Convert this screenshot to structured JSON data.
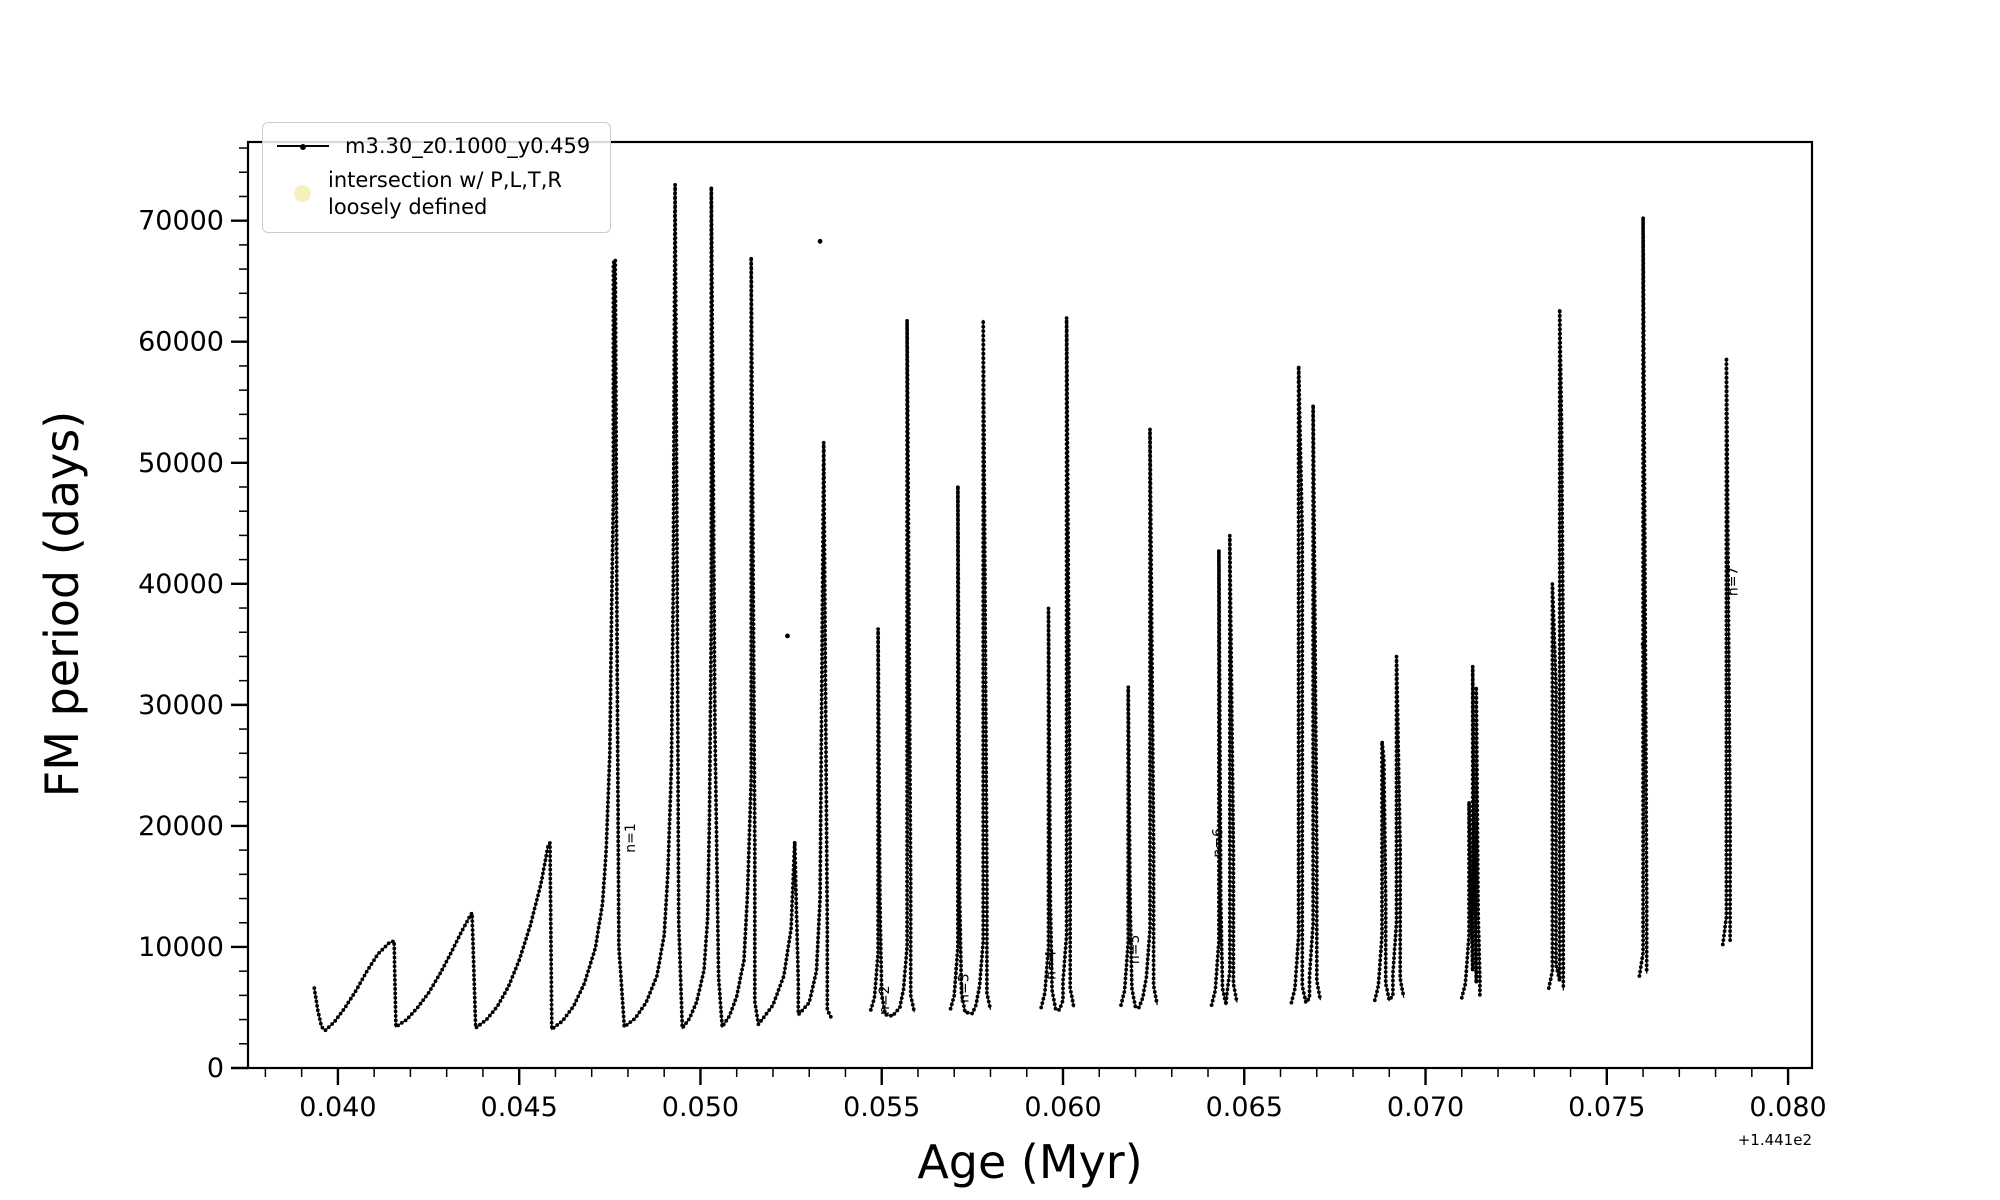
{
  "chart_data": {
    "type": "line",
    "title": "",
    "xlabel": "Age (Myr)",
    "ylabel": "FM period (days)",
    "x_offset_text": "+1.441e2",
    "xlim": [
      0.03752,
      0.08066
    ],
    "ylim": [
      0,
      76500
    ],
    "x_minor_step": 0.001,
    "y_minor_step": 2000,
    "grid": false,
    "xticks": [
      {
        "v": 0.04,
        "label": "0.040"
      },
      {
        "v": 0.045,
        "label": "0.045"
      },
      {
        "v": 0.05,
        "label": "0.050"
      },
      {
        "v": 0.055,
        "label": "0.055"
      },
      {
        "v": 0.06,
        "label": "0.060"
      },
      {
        "v": 0.065,
        "label": "0.065"
      },
      {
        "v": 0.07,
        "label": "0.070"
      },
      {
        "v": 0.075,
        "label": "0.075"
      },
      {
        "v": 0.08,
        "label": "0.080"
      }
    ],
    "yticks": [
      {
        "v": 0,
        "label": "0"
      },
      {
        "v": 10000,
        "label": "10000"
      },
      {
        "v": 20000,
        "label": "20000"
      },
      {
        "v": 30000,
        "label": "30000"
      },
      {
        "v": 40000,
        "label": "40000"
      },
      {
        "v": 50000,
        "label": "50000"
      },
      {
        "v": 60000,
        "label": "60000"
      },
      {
        "v": 70000,
        "label": "70000"
      }
    ],
    "legend": {
      "position": "upper-left",
      "series_label": "m3.30_z0.1000_y0.459",
      "intersection_label": [
        "intersection w/ P,L,T,R",
        "loosely defined"
      ],
      "marker_color": "#e8e06a"
    },
    "series": {
      "name": "m3.30_z0.1000_y0.459",
      "color": "#000000",
      "segments": [
        [
          [
            0.03935,
            6600
          ],
          [
            0.03945,
            4700
          ],
          [
            0.03955,
            3400
          ],
          [
            0.03965,
            3100
          ],
          [
            0.0399,
            3800
          ],
          [
            0.0402,
            5000
          ],
          [
            0.0405,
            6400
          ],
          [
            0.0408,
            8000
          ],
          [
            0.0411,
            9400
          ],
          [
            0.0414,
            10300
          ],
          [
            0.04155,
            10500
          ],
          [
            0.0416,
            3400
          ],
          [
            0.0419,
            4000
          ],
          [
            0.0422,
            5000
          ],
          [
            0.0425,
            6200
          ],
          [
            0.0428,
            7700
          ],
          [
            0.0431,
            9400
          ],
          [
            0.0434,
            11200
          ],
          [
            0.04365,
            12600
          ],
          [
            0.0437,
            12800
          ],
          [
            0.0438,
            3300
          ],
          [
            0.0441,
            4000
          ],
          [
            0.0444,
            5100
          ],
          [
            0.0447,
            6700
          ],
          [
            0.045,
            8900
          ],
          [
            0.0453,
            11700
          ],
          [
            0.0456,
            15200
          ],
          [
            0.0458,
            18400
          ],
          [
            0.04585,
            18600
          ],
          [
            0.0459,
            3200
          ],
          [
            0.0462,
            3900
          ],
          [
            0.0465,
            5100
          ],
          [
            0.0468,
            7000
          ],
          [
            0.0471,
            9900
          ],
          [
            0.0473,
            13600
          ],
          [
            0.0474,
            18000
          ],
          [
            0.0475,
            26000
          ],
          [
            0.04755,
            38000
          ],
          [
            0.0476,
            47500
          ],
          [
            0.0476,
            66500
          ],
          [
            0.04765,
            66800
          ],
          [
            0.0477,
            35000
          ],
          [
            0.04775,
            10000
          ],
          [
            0.0479,
            3400
          ],
          [
            0.0482,
            4100
          ],
          [
            0.0485,
            5400
          ],
          [
            0.0488,
            7600
          ],
          [
            0.049,
            11000
          ],
          [
            0.0491,
            16000
          ],
          [
            0.0492,
            25000
          ],
          [
            0.04925,
            40000
          ],
          [
            0.0493,
            73000
          ],
          [
            0.04935,
            45000
          ],
          [
            0.0494,
            12000
          ],
          [
            0.0495,
            3300
          ],
          [
            0.0497,
            4100
          ],
          [
            0.0499,
            5500
          ],
          [
            0.0501,
            8100
          ],
          [
            0.0502,
            12500
          ],
          [
            0.05025,
            21000
          ],
          [
            0.0503,
            37700
          ],
          [
            0.0503,
            72800
          ],
          [
            0.0504,
            28000
          ],
          [
            0.0505,
            7500
          ],
          [
            0.0506,
            3400
          ],
          [
            0.0508,
            4300
          ],
          [
            0.051,
            5900
          ],
          [
            0.0512,
            8900
          ],
          [
            0.0513,
            14500
          ],
          [
            0.0514,
            24000
          ],
          [
            0.0514,
            67000
          ],
          [
            0.0515,
            18000
          ],
          [
            0.0515,
            5500
          ],
          [
            0.0516,
            3600
          ],
          [
            0.0517,
            4000
          ],
          [
            0.052,
            5200
          ],
          [
            0.0523,
            7600
          ],
          [
            0.0525,
            11500
          ],
          [
            0.0526,
            18700
          ],
          [
            0.0527,
            7000
          ],
          [
            0.0527,
            4400
          ],
          [
            0.053,
            5400
          ],
          [
            0.0532,
            8000
          ],
          [
            0.0533,
            14000
          ],
          [
            0.0534,
            51700
          ],
          [
            0.0535,
            11000
          ],
          [
            0.0535,
            4800
          ],
          [
            0.0536,
            4200
          ]
        ],
        [
          [
            0.0547,
            4800
          ],
          [
            0.0548,
            5800
          ],
          [
            0.0549,
            9500
          ],
          [
            0.0549,
            36300
          ],
          [
            0.05495,
            14000
          ],
          [
            0.055,
            6000
          ],
          [
            0.0551,
            4400
          ],
          [
            0.0553,
            4300
          ],
          [
            0.0555,
            5000
          ],
          [
            0.0556,
            6500
          ],
          [
            0.0557,
            10000
          ],
          [
            0.0557,
            61800
          ],
          [
            0.0558,
            15000
          ],
          [
            0.0558,
            6000
          ],
          [
            0.0559,
            4600
          ]
        ],
        [
          [
            0.0569,
            4900
          ],
          [
            0.057,
            6000
          ],
          [
            0.0571,
            10000
          ],
          [
            0.0571,
            48100
          ],
          [
            0.05715,
            14000
          ],
          [
            0.0572,
            6200
          ],
          [
            0.0573,
            4600
          ],
          [
            0.0575,
            4500
          ],
          [
            0.0576,
            5200
          ],
          [
            0.0577,
            6800
          ],
          [
            0.0578,
            10500
          ],
          [
            0.0578,
            61800
          ],
          [
            0.0579,
            16000
          ],
          [
            0.0579,
            6200
          ],
          [
            0.058,
            4800
          ]
        ],
        [
          [
            0.0594,
            5000
          ],
          [
            0.0595,
            6200
          ],
          [
            0.0596,
            10000
          ],
          [
            0.0596,
            38000
          ],
          [
            0.05965,
            14000
          ],
          [
            0.0597,
            6400
          ],
          [
            0.0598,
            4800
          ],
          [
            0.0599,
            4800
          ],
          [
            0.06,
            5600
          ],
          [
            0.06,
            7200
          ],
          [
            0.0601,
            11000
          ],
          [
            0.0601,
            62000
          ],
          [
            0.0602,
            17000
          ],
          [
            0.0602,
            6600
          ],
          [
            0.0603,
            5000
          ]
        ],
        [
          [
            0.0616,
            5200
          ],
          [
            0.0617,
            6400
          ],
          [
            0.0618,
            10500
          ],
          [
            0.0618,
            31500
          ],
          [
            0.06185,
            14000
          ],
          [
            0.0619,
            6600
          ],
          [
            0.062,
            5000
          ],
          [
            0.0621,
            5000
          ],
          [
            0.0622,
            5800
          ],
          [
            0.0623,
            7500
          ],
          [
            0.0624,
            11500
          ],
          [
            0.0624,
            52800
          ],
          [
            0.0625,
            18000
          ],
          [
            0.0625,
            6800
          ],
          [
            0.0626,
            5200
          ]
        ],
        [
          [
            0.0641,
            5200
          ],
          [
            0.0642,
            6400
          ],
          [
            0.0643,
            10500
          ],
          [
            0.0643,
            42800
          ],
          [
            0.06435,
            14000
          ],
          [
            0.0644,
            6600
          ],
          [
            0.0645,
            5200
          ],
          [
            0.0645,
            5600
          ],
          [
            0.0646,
            8000
          ],
          [
            0.0646,
            44000
          ],
          [
            0.0647,
            18000
          ],
          [
            0.0647,
            7000
          ],
          [
            0.0648,
            5400
          ]
        ],
        [
          [
            0.0663,
            5400
          ],
          [
            0.0664,
            6600
          ],
          [
            0.0665,
            11000
          ],
          [
            0.0665,
            58000
          ],
          [
            0.0666,
            44000
          ],
          [
            0.0666,
            14000
          ],
          [
            0.0666,
            6800
          ],
          [
            0.0667,
            5400
          ],
          [
            0.0668,
            5800
          ],
          [
            0.0668,
            7600
          ],
          [
            0.0669,
            12000
          ],
          [
            0.0669,
            54800
          ],
          [
            0.067,
            18000
          ],
          [
            0.067,
            7200
          ],
          [
            0.0671,
            5600
          ]
        ],
        [
          [
            0.0686,
            5600
          ],
          [
            0.0687,
            6800
          ],
          [
            0.0688,
            11000
          ],
          [
            0.0688,
            27000
          ],
          [
            0.06885,
            25500
          ],
          [
            0.0689,
            14000
          ],
          [
            0.0689,
            7000
          ],
          [
            0.069,
            5600
          ],
          [
            0.0691,
            6000
          ],
          [
            0.0691,
            7800
          ],
          [
            0.0692,
            12000
          ],
          [
            0.0692,
            34000
          ],
          [
            0.0693,
            18000
          ],
          [
            0.0693,
            7400
          ],
          [
            0.0694,
            5800
          ]
        ],
        [
          [
            0.071,
            5800
          ],
          [
            0.0711,
            7000
          ],
          [
            0.0712,
            11000
          ],
          [
            0.0712,
            22000
          ],
          [
            0.07125,
            15000
          ],
          [
            0.0713,
            8000
          ],
          [
            0.0713,
            33200
          ],
          [
            0.07135,
            16000
          ],
          [
            0.0714,
            7000
          ],
          [
            0.0714,
            31500
          ],
          [
            0.07145,
            13000
          ],
          [
            0.0715,
            7200
          ],
          [
            0.0715,
            5900
          ]
        ],
        [
          [
            0.0734,
            6600
          ],
          [
            0.0735,
            8000
          ],
          [
            0.0735,
            40000
          ],
          [
            0.0736,
            31500
          ],
          [
            0.0736,
            8500
          ],
          [
            0.0737,
            7200
          ],
          [
            0.0737,
            12000
          ],
          [
            0.0737,
            62700
          ],
          [
            0.07375,
            53500
          ],
          [
            0.0738,
            33000
          ],
          [
            0.0738,
            12000
          ],
          [
            0.0738,
            6400
          ]
        ],
        [
          [
            0.0759,
            7600
          ],
          [
            0.076,
            9500
          ],
          [
            0.076,
            70300
          ],
          [
            0.0761,
            14000
          ],
          [
            0.0761,
            7800
          ]
        ],
        [
          [
            0.0782,
            10200
          ],
          [
            0.0783,
            12500
          ],
          [
            0.0783,
            58700
          ],
          [
            0.0784,
            20000
          ],
          [
            0.0784,
            10500
          ]
        ]
      ]
    },
    "isolated_points": [
      [
        0.0524,
        35700
      ],
      [
        0.0533,
        68300
      ],
      [
        0.076,
        35000
      ]
    ],
    "annotations": [
      {
        "text": "n=1",
        "x": 0.0482,
        "y": 19000,
        "rotation": -90
      },
      {
        "text": "n=2",
        "x": 0.0552,
        "y": 5600,
        "rotation": -90
      },
      {
        "text": "n=3",
        "x": 0.0574,
        "y": 6600,
        "rotation": -90
      },
      {
        "text": "n=4",
        "x": 0.0598,
        "y": 8500,
        "rotation": -90
      },
      {
        "text": "n=5",
        "x": 0.0621,
        "y": 9800,
        "rotation": -90
      },
      {
        "text": "n=6",
        "x": 0.0644,
        "y": 18600,
        "rotation": -90
      },
      {
        "text": "n=7",
        "x": 0.0786,
        "y": 40200,
        "rotation": -90
      }
    ]
  }
}
